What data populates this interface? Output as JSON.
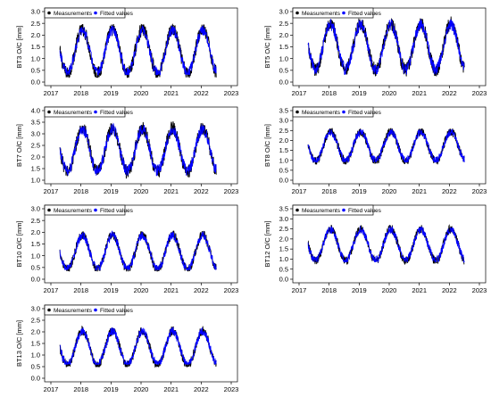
{
  "colors": {
    "measurements": "#000000",
    "fitted": "#0000ff",
    "axis": "#000000",
    "background": "#ffffff"
  },
  "legend": {
    "measurements_label": "Measurements",
    "fitted_label": "Fitted values",
    "placement": "top-left"
  },
  "chart_data": [
    {
      "type": "line",
      "ylabel": "BT3 O/C [mm]",
      "xlim": [
        2017,
        2023
      ],
      "x_ticks": [
        "2017",
        "2018",
        "2019",
        "2020",
        "2021",
        "2022",
        "2023"
      ],
      "ylim": [
        0.0,
        3.0
      ],
      "y_ticks": [
        "0.0",
        "0.5",
        "1.0",
        "1.5",
        "2.0",
        "2.5",
        "3.0"
      ],
      "data_range_x": [
        2017.3,
        2022.5
      ],
      "series": [
        {
          "name": "Measurements",
          "mean": 1.3,
          "amplitude": 0.95,
          "noise": 0.3,
          "peak_phase": 0.05,
          "min_value": 0.2,
          "max_value": 2.45
        },
        {
          "name": "Fitted values",
          "mean": 1.3,
          "amplitude": 0.9,
          "noise": 0.22,
          "peak_phase": 0.05,
          "min_value": 0.3,
          "max_value": 2.4
        }
      ]
    },
    {
      "type": "line",
      "ylabel": "BT5 O/C [mm]",
      "xlim": [
        2017,
        2023
      ],
      "x_ticks": [
        "2017",
        "2018",
        "2019",
        "2020",
        "2021",
        "2022",
        "2023"
      ],
      "ylim": [
        0.0,
        3.0
      ],
      "y_ticks": [
        "0.0",
        "0.5",
        "1.0",
        "1.5",
        "2.0",
        "2.5",
        "3.0"
      ],
      "data_range_x": [
        2017.3,
        2022.5
      ],
      "series": [
        {
          "name": "Measurements",
          "mean": 1.5,
          "amplitude": 1.0,
          "noise": 0.3,
          "peak_phase": 0.05,
          "min_value": 0.15,
          "max_value": 2.9
        },
        {
          "name": "Fitted values",
          "mean": 1.5,
          "amplitude": 0.95,
          "noise": 0.25,
          "peak_phase": 0.05,
          "min_value": 0.3,
          "max_value": 2.8
        }
      ]
    },
    {
      "type": "line",
      "ylabel": "BT7 O/C [mm]",
      "xlim": [
        2017,
        2023
      ],
      "x_ticks": [
        "2017",
        "2018",
        "2019",
        "2020",
        "2021",
        "2022",
        "2023"
      ],
      "ylim": [
        1.0,
        4.0
      ],
      "y_ticks": [
        "1.0",
        "1.5",
        "2.0",
        "2.5",
        "3.0",
        "3.5",
        "4.0"
      ],
      "data_range_x": [
        2017.3,
        2022.5
      ],
      "series": [
        {
          "name": "Measurements",
          "mean": 2.3,
          "amplitude": 0.95,
          "noise": 0.3,
          "peak_phase": 0.05,
          "min_value": 1.05,
          "max_value": 3.6
        },
        {
          "name": "Fitted values",
          "mean": 2.3,
          "amplitude": 0.9,
          "noise": 0.25,
          "peak_phase": 0.05,
          "min_value": 1.2,
          "max_value": 3.5
        }
      ]
    },
    {
      "type": "line",
      "ylabel": "BT8 O/C [mm]",
      "xlim": [
        2017,
        2023
      ],
      "x_ticks": [
        "2017",
        "2018",
        "2019",
        "2020",
        "2021",
        "2022",
        "2023"
      ],
      "ylim": [
        0.0,
        3.5
      ],
      "y_ticks": [
        "0.0",
        "0.5",
        "1.0",
        "1.5",
        "2.0",
        "2.5",
        "3.0",
        "3.5"
      ],
      "data_range_x": [
        2017.3,
        2022.5
      ],
      "series": [
        {
          "name": "Measurements",
          "mean": 1.7,
          "amplitude": 0.75,
          "noise": 0.22,
          "peak_phase": 0.05,
          "min_value": 0.8,
          "max_value": 2.6
        },
        {
          "name": "Fitted values",
          "mean": 1.7,
          "amplitude": 0.72,
          "noise": 0.2,
          "peak_phase": 0.05,
          "min_value": 0.9,
          "max_value": 2.55
        }
      ]
    },
    {
      "type": "line",
      "ylabel": "BT10 O/C [mm]",
      "xlim": [
        2017,
        2023
      ],
      "x_ticks": [
        "2017",
        "2018",
        "2019",
        "2020",
        "2021",
        "2022",
        "2023"
      ],
      "ylim": [
        0.0,
        3.0
      ],
      "y_ticks": [
        "0.0",
        "0.5",
        "1.0",
        "1.5",
        "2.0",
        "2.5",
        "3.0"
      ],
      "data_range_x": [
        2017.3,
        2022.5
      ],
      "series": [
        {
          "name": "Measurements",
          "mean": 1.15,
          "amplitude": 0.75,
          "noise": 0.2,
          "peak_phase": 0.05,
          "min_value": 0.35,
          "max_value": 2.15
        },
        {
          "name": "Fitted values",
          "mean": 1.15,
          "amplitude": 0.72,
          "noise": 0.18,
          "peak_phase": 0.05,
          "min_value": 0.4,
          "max_value": 2.1
        }
      ]
    },
    {
      "type": "line",
      "ylabel": "BT12 O/C [mm]",
      "xlim": [
        2017,
        2023
      ],
      "x_ticks": [
        "2017",
        "2018",
        "2019",
        "2020",
        "2021",
        "2022",
        "2023"
      ],
      "ylim": [
        0.0,
        3.5
      ],
      "y_ticks": [
        "0.0",
        "0.5",
        "1.0",
        "1.5",
        "2.0",
        "2.5",
        "3.0",
        "3.5"
      ],
      "data_range_x": [
        2017.3,
        2022.5
      ],
      "series": [
        {
          "name": "Measurements",
          "mean": 1.7,
          "amplitude": 0.8,
          "noise": 0.22,
          "peak_phase": 0.05,
          "min_value": 0.75,
          "max_value": 2.75
        },
        {
          "name": "Fitted values",
          "mean": 1.7,
          "amplitude": 0.76,
          "noise": 0.2,
          "peak_phase": 0.05,
          "min_value": 0.85,
          "max_value": 2.65
        }
      ]
    },
    {
      "type": "line",
      "ylabel": "BT13 O/C [mm]",
      "xlim": [
        2017,
        2023
      ],
      "x_ticks": [
        "2017",
        "2018",
        "2019",
        "2020",
        "2021",
        "2022",
        "2023"
      ],
      "ylim": [
        0.0,
        3.0
      ],
      "y_ticks": [
        "0.0",
        "0.5",
        "1.0",
        "1.5",
        "2.0",
        "2.5",
        "3.0"
      ],
      "data_range_x": [
        2017.3,
        2022.5
      ],
      "series": [
        {
          "name": "Measurements",
          "mean": 1.3,
          "amplitude": 0.75,
          "noise": 0.2,
          "peak_phase": 0.05,
          "min_value": 0.5,
          "max_value": 2.3
        },
        {
          "name": "Fitted values",
          "mean": 1.3,
          "amplitude": 0.72,
          "noise": 0.18,
          "peak_phase": 0.05,
          "min_value": 0.6,
          "max_value": 2.2
        }
      ]
    }
  ]
}
